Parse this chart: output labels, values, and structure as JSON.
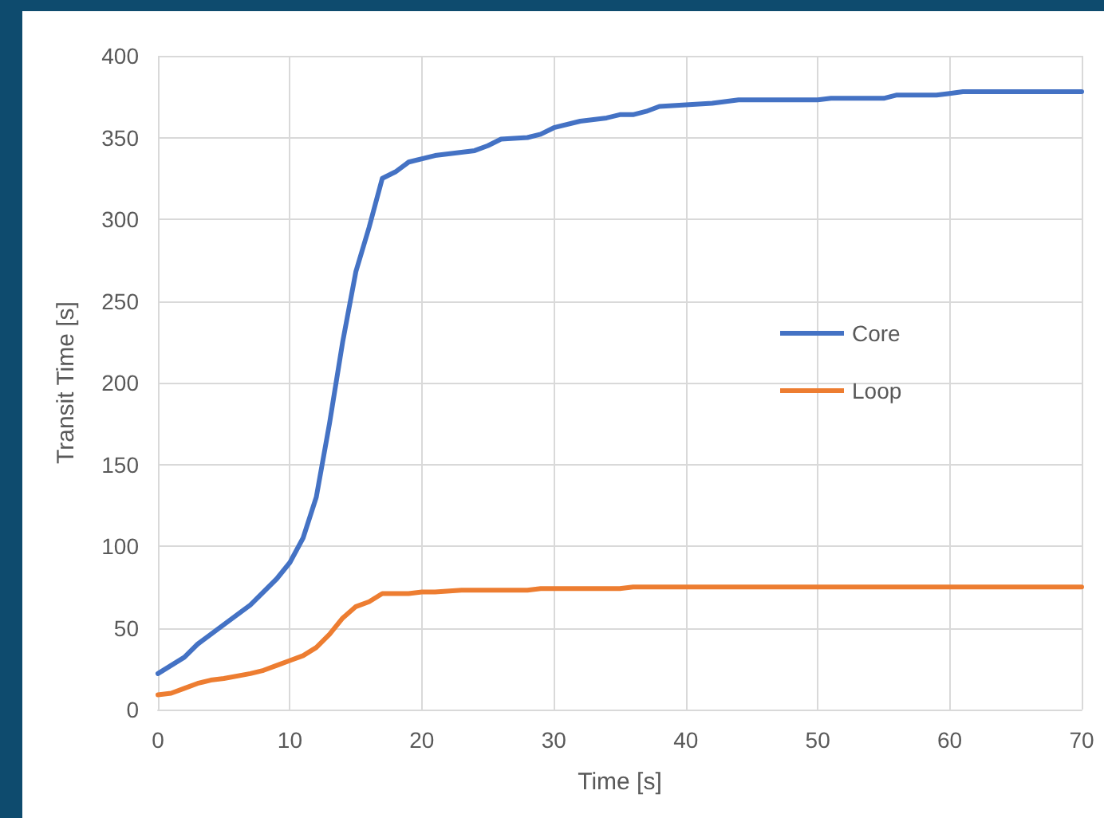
{
  "chart_data": {
    "type": "line",
    "xlabel": "Time [s]",
    "ylabel": "Transit Time [s]",
    "xlim": [
      0,
      70
    ],
    "xticks": [
      0,
      10,
      20,
      30,
      40,
      50,
      60,
      70
    ],
    "ylim": [
      0,
      400
    ],
    "yticks": [
      0,
      50,
      100,
      150,
      200,
      250,
      300,
      350,
      400
    ],
    "grid": true,
    "legend": "right",
    "marker": "none",
    "line_style": "solid",
    "series": [
      {
        "name": "Core",
        "color": "#4472c4",
        "x": [
          0,
          2,
          3,
          5,
          7,
          9,
          10,
          11,
          12,
          13,
          14,
          15,
          16,
          17,
          18,
          19,
          21,
          24,
          25,
          26,
          28,
          29,
          30,
          32,
          34,
          35,
          36,
          37,
          38,
          40,
          42,
          44,
          50,
          51,
          55,
          56,
          59,
          60,
          61,
          70
        ],
        "values": [
          22,
          32,
          40,
          52,
          64,
          80,
          90,
          105,
          130,
          175,
          225,
          268,
          295,
          325,
          329,
          335,
          339,
          342,
          345,
          349,
          350,
          352,
          356,
          360,
          362,
          364,
          364,
          366,
          369,
          370,
          371,
          373,
          373,
          374,
          374,
          376,
          376,
          377,
          378,
          378
        ]
      },
      {
        "name": "Loop",
        "color": "#ed7d31",
        "x": [
          0,
          1,
          2,
          3,
          4,
          5,
          7,
          8,
          9,
          10,
          11,
          12,
          13,
          14,
          15,
          16,
          17,
          19,
          20,
          21,
          23,
          28,
          29,
          35,
          36,
          70
        ],
        "values": [
          9,
          10,
          13,
          16,
          18,
          19,
          22,
          24,
          27,
          30,
          33,
          38,
          46,
          56,
          63,
          66,
          71,
          71,
          72,
          72,
          73,
          73,
          74,
          74,
          75,
          75
        ]
      }
    ]
  }
}
